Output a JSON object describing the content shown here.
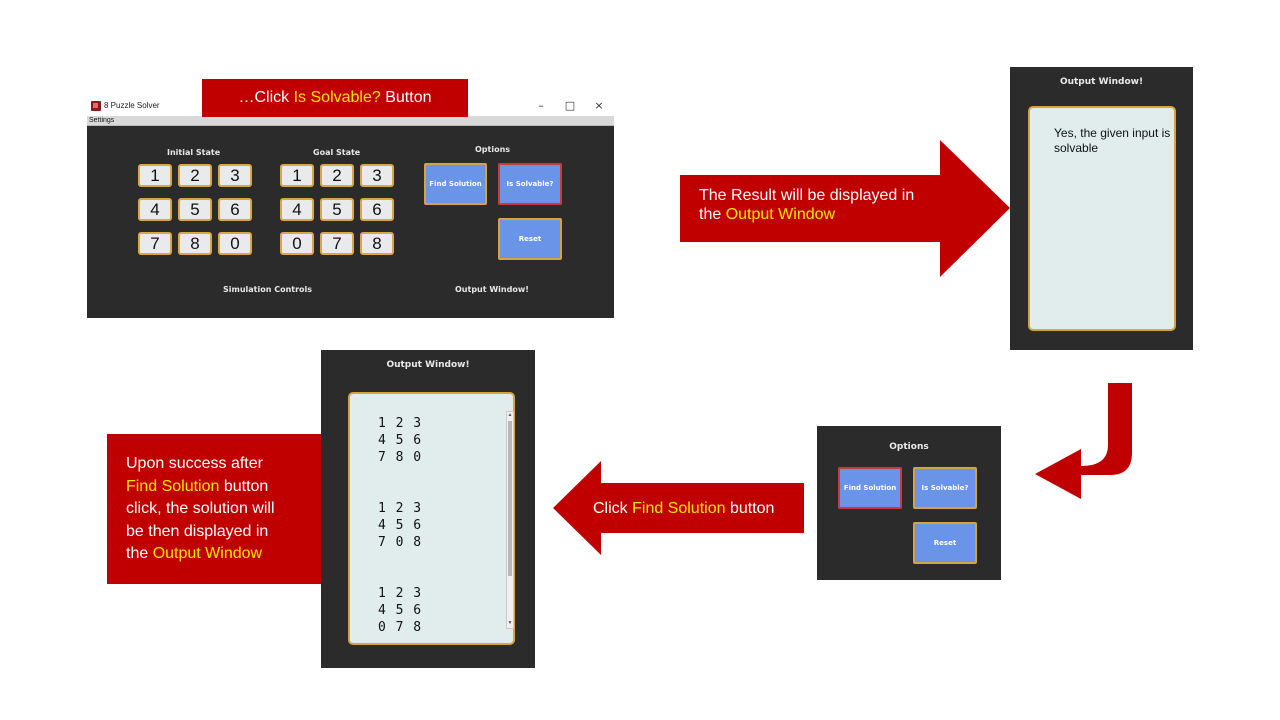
{
  "app_window": {
    "title": "8 Puzzle Solver",
    "menu": [
      "Settings"
    ],
    "window_controls": [
      "–",
      "□",
      "×"
    ],
    "initial_state_label": "Initial State",
    "goal_state_label": "Goal State",
    "options_label": "Options",
    "initial_tiles": [
      "1",
      "2",
      "3",
      "4",
      "5",
      "6",
      "7",
      "8",
      "0"
    ],
    "goal_tiles": [
      "1",
      "2",
      "3",
      "4",
      "5",
      "6",
      "0",
      "7",
      "8"
    ],
    "find_solution": "Find Solution",
    "is_solvable": "Is Solvable?",
    "reset": "Reset",
    "simulation_controls_label": "Simulation Controls",
    "output_window_label": "Output Window!"
  },
  "banner_top": {
    "prefix": "…Click ",
    "highlight": "Is Solvable?",
    "suffix": " Button"
  },
  "banner_result": {
    "line1": "The  Result  will  be  displayed   in",
    "line2_prefix": "the ",
    "line2_highlight": "Output Window"
  },
  "output_window_right": {
    "title": "Output Window!",
    "text": "Yes, the given input is solvable"
  },
  "options_panel": {
    "title": "Options",
    "find_solution": "Find Solution",
    "is_solvable": "Is Solvable?",
    "reset": "Reset"
  },
  "banner_click_find": {
    "prefix": "Click ",
    "highlight": "Find Solution",
    "suffix": " button"
  },
  "output_window_bottom": {
    "title": "Output Window!",
    "lines": [
      "1 2 3",
      "4 5 6",
      "7 8 0",
      "",
      "",
      "1 2 3",
      "4 5 6",
      "7 0 8",
      "",
      "",
      "1 2 3",
      "4 5 6",
      "0 7 8"
    ]
  },
  "banner_success": {
    "line1": "Upon  success  after",
    "line2_highlight": "Find Solution",
    "line2_suffix": " button",
    "line3": "click, the solution will",
    "line4": "be then displayed in",
    "line5_prefix": "the ",
    "line5_highlight": "Output Window"
  },
  "colors": {
    "banner_red": "#c00000",
    "highlight_yellow": "#ffe600",
    "button_blue": "#6a94e8",
    "panel_dark": "#2b2b2b"
  }
}
